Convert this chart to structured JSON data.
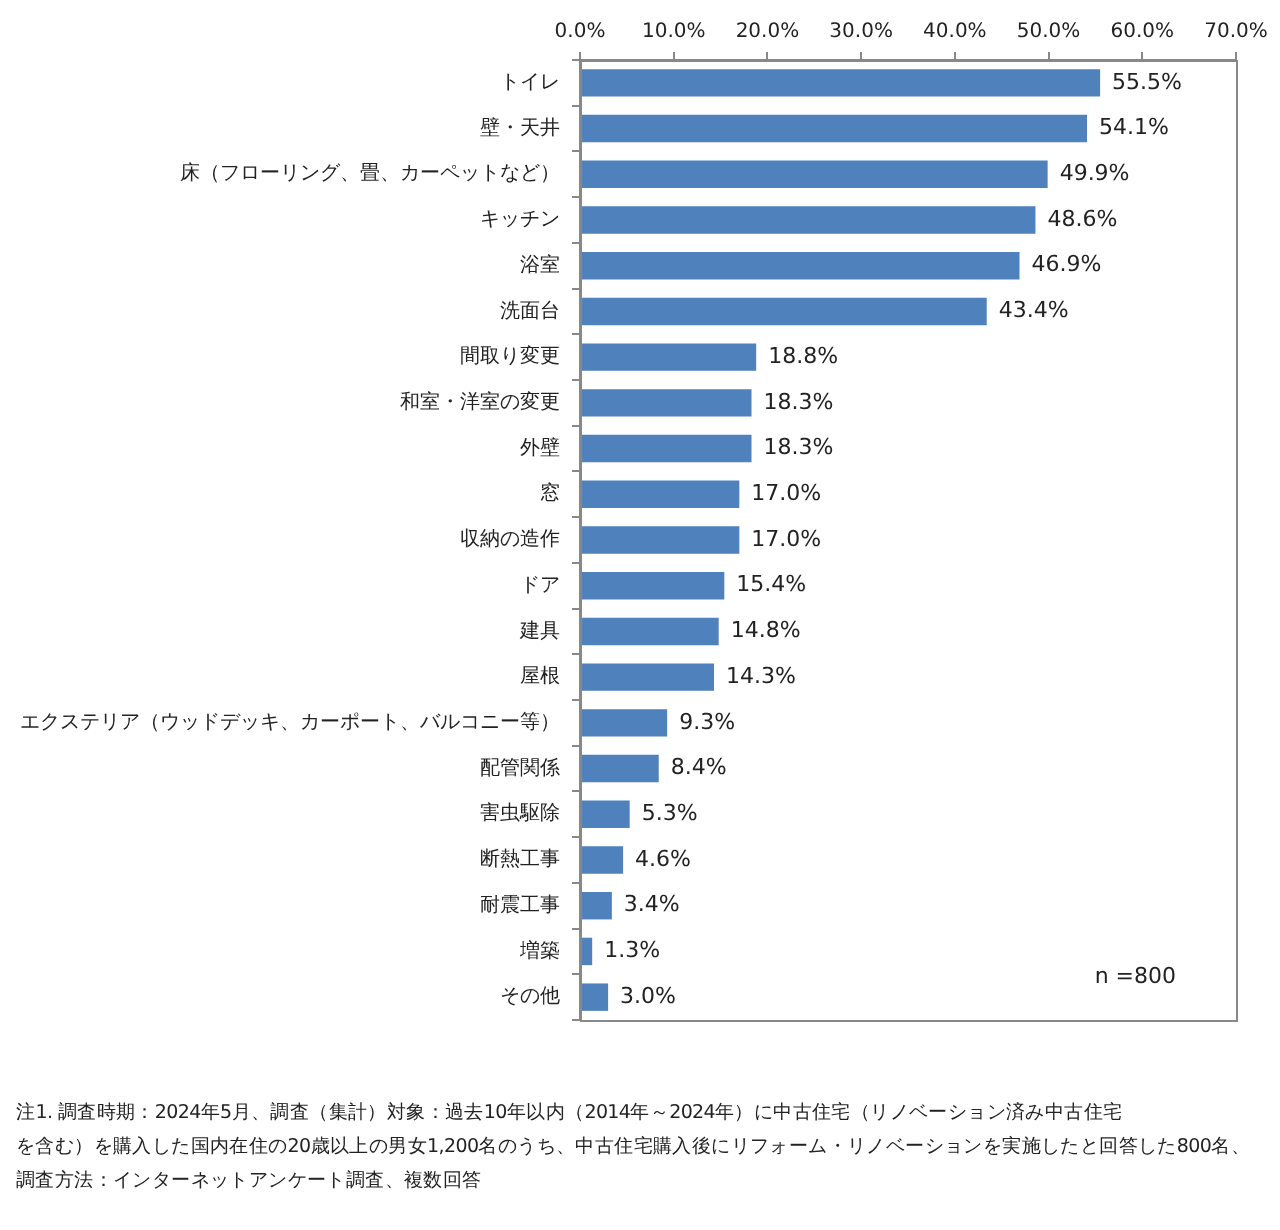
{
  "chart_data": {
    "type": "bar",
    "orientation": "horizontal",
    "categories": [
      "トイレ",
      "壁・天井",
      "床（フローリング、畳、カーペットなど）",
      "キッチン",
      "浴室",
      "洗面台",
      "間取り変更",
      "和室・洋室の変更",
      "外壁",
      "窓",
      "収納の造作",
      "ドア",
      "建具",
      "屋根",
      "エクステリア（ウッドデッキ、カーポート、バルコニー等）",
      "配管関係",
      "害虫駆除",
      "断熱工事",
      "耐震工事",
      "増築",
      "その他"
    ],
    "values": [
      55.5,
      54.1,
      49.9,
      48.6,
      46.9,
      43.4,
      18.8,
      18.3,
      18.3,
      17.0,
      17.0,
      15.4,
      14.8,
      14.3,
      9.3,
      8.4,
      5.3,
      4.6,
      3.4,
      1.3,
      3.0
    ],
    "value_labels": [
      "55.5%",
      "54.1%",
      "49.9%",
      "48.6%",
      "46.9%",
      "43.4%",
      "18.8%",
      "18.3%",
      "18.3%",
      "17.0%",
      "17.0%",
      "15.4%",
      "14.8%",
      "14.3%",
      "9.3%",
      "8.4%",
      "5.3%",
      "4.6%",
      "3.4%",
      "1.3%",
      "3.0%"
    ],
    "color": "#4f81bd",
    "xlim": [
      0,
      70
    ],
    "xticks": [
      {
        "value": 0,
        "label": "0.0%"
      },
      {
        "value": 10,
        "label": "10.0%"
      },
      {
        "value": 20,
        "label": "20.0%"
      },
      {
        "value": 30,
        "label": "30.0%"
      },
      {
        "value": 40,
        "label": "40.0%"
      },
      {
        "value": 50,
        "label": "50.0%"
      },
      {
        "value": 60,
        "label": "60.0%"
      },
      {
        "value": 70,
        "label": "70.0%"
      }
    ],
    "grid": false,
    "legend": false,
    "annotations": [
      "n =800",
      "注1. 調査時期：2024年5月、調査（集計）対象：過去10年以内（2014年～2024年）に中古住宅（リノベーション済み中古住宅",
      "を含む）を購入した国内在住の20歳以上の男女1,200名のうち、中古住宅購入後にリフォーム・リノベーションを実施したと回答した800名、",
      "調査方法：インターネットアンケート調査、複数回答"
    ]
  }
}
